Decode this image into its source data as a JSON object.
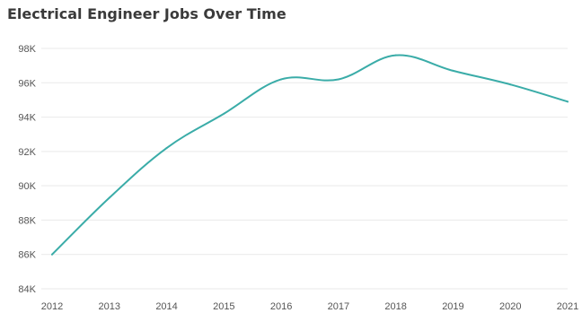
{
  "chart_data": {
    "type": "line",
    "title": "Electrical Engineer Jobs Over Time",
    "xlabel": "",
    "ylabel": "",
    "x": [
      "2012",
      "2013",
      "2014",
      "2015",
      "2016",
      "2017",
      "2018",
      "2019",
      "2020",
      "2021"
    ],
    "series": [
      {
        "values": [
          86000,
          89300,
          92200,
          94200,
          96200,
          96200,
          97600,
          96700,
          95900,
          94900
        ],
        "color": "#3aaca8"
      }
    ],
    "y_ticks": [
      "84K",
      "86K",
      "88K",
      "90K",
      "92K",
      "94K",
      "96K",
      "98K"
    ],
    "ylim": [
      84000,
      98000
    ],
    "grid": true,
    "legend": "none"
  }
}
